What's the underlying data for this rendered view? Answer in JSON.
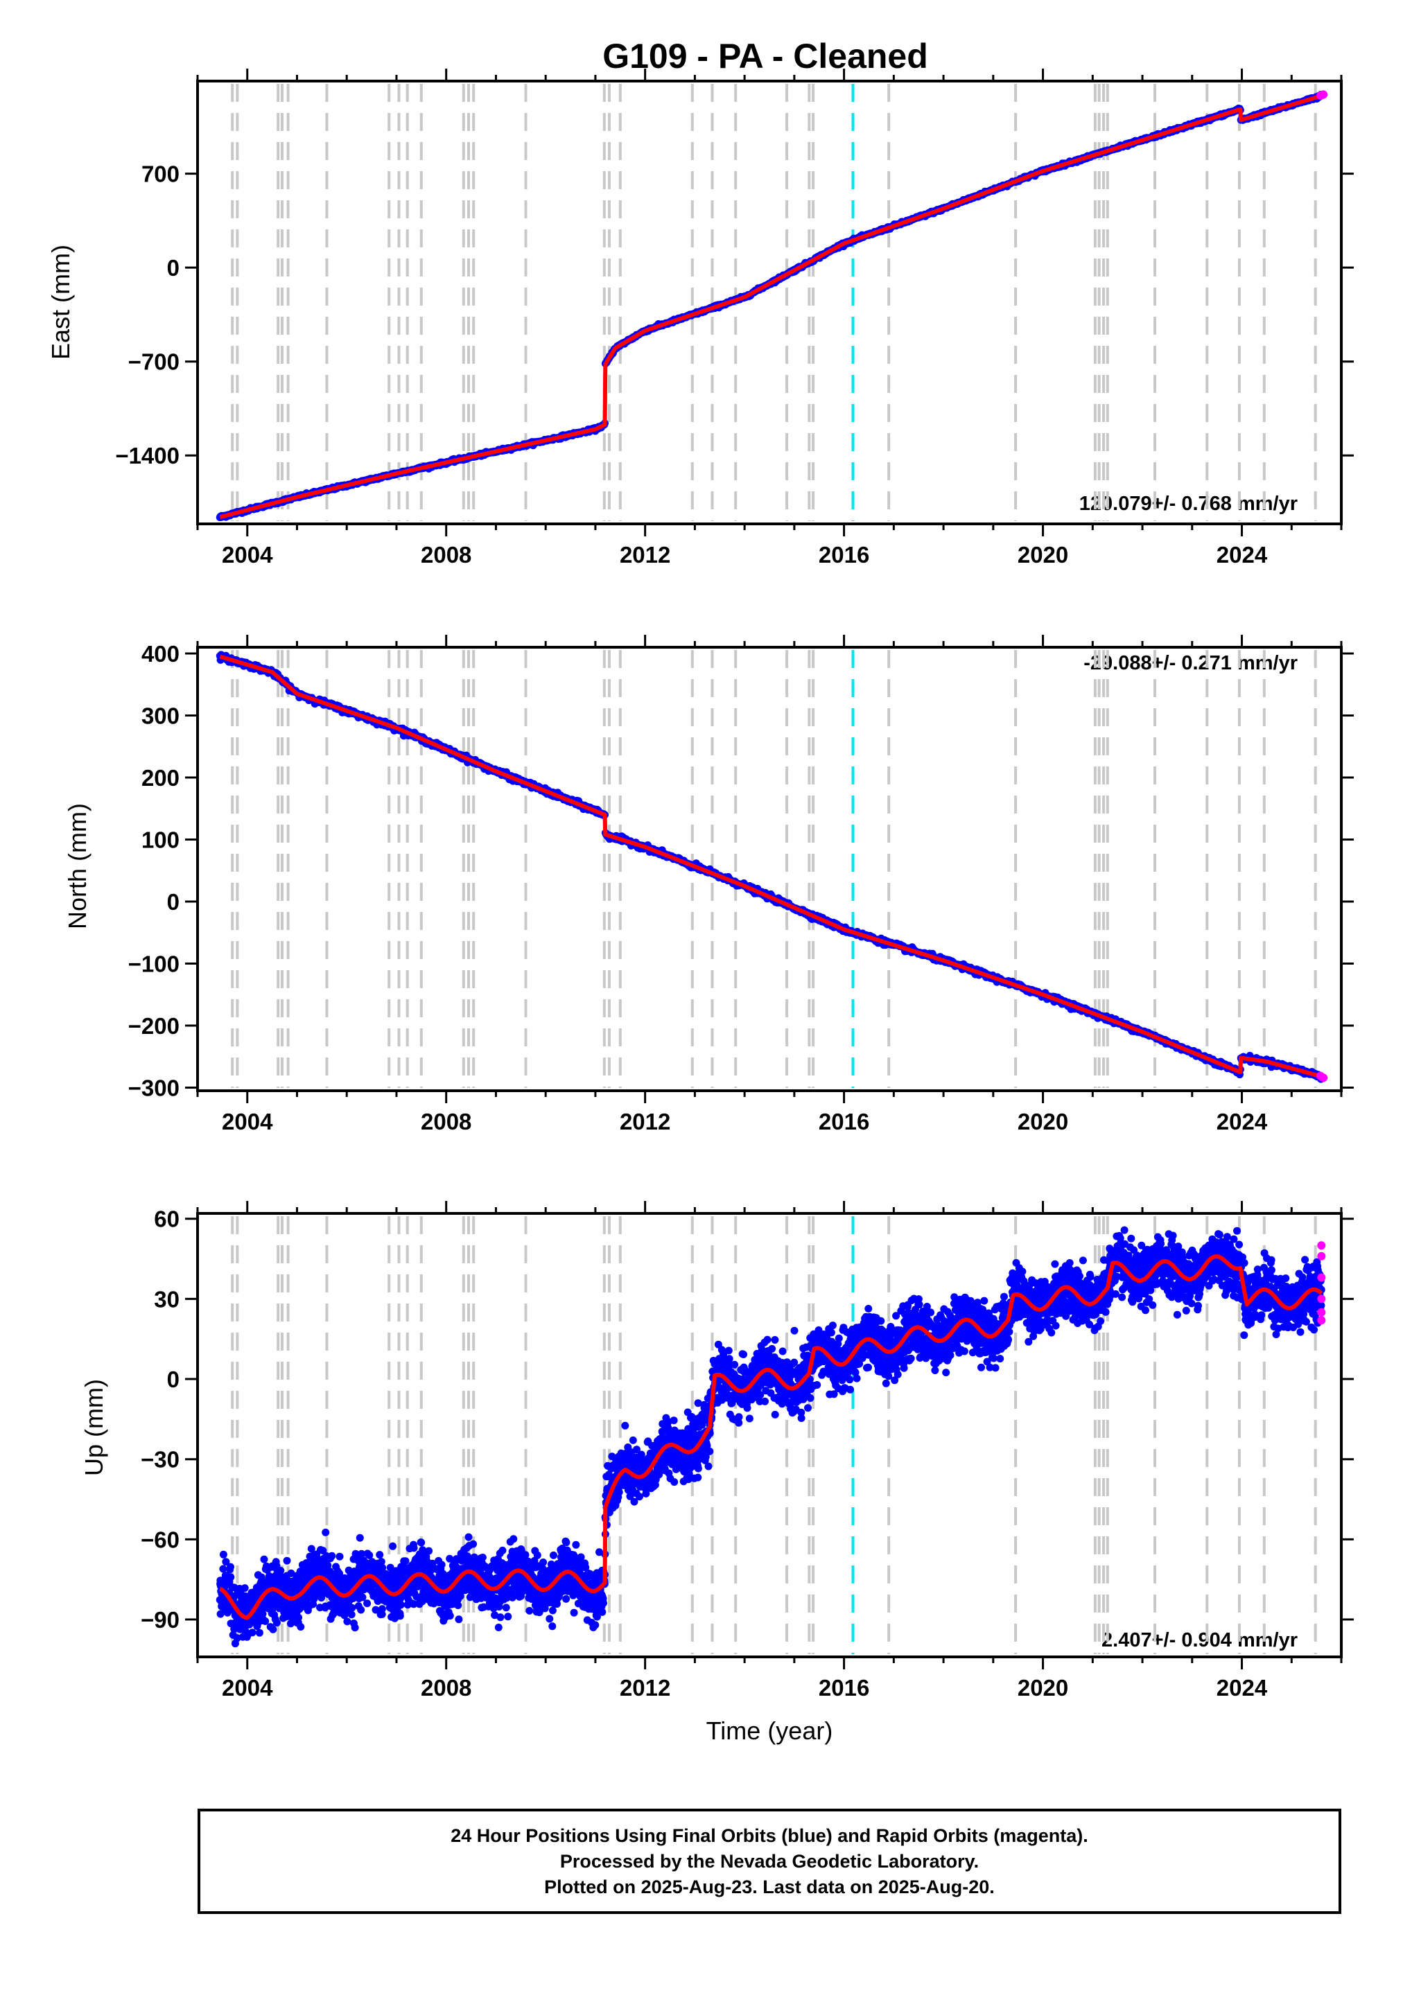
{
  "title": "G109  - PA - Cleaned",
  "xlabel": "Time (year)",
  "caption": [
    "24 Hour Positions Using Final Orbits (blue) and Rapid Orbits (magenta).",
    "Processed by the Nevada Geodetic Laboratory.",
    "Plotted on 2025-Aug-23. Last data on 2025-Aug-20."
  ],
  "colors": {
    "final_orbits": "#0000ff",
    "rapid_orbits": "#ff00ff",
    "model_fit": "#ff0000",
    "equipment_change": "#c8c8c8",
    "highlight_event": "#00e5ee"
  },
  "chart_data": [
    {
      "type": "scatter",
      "ylabel": "East (mm)",
      "rate_label": "120.079+/- 0.768 mm/yr",
      "xlim": [
        2003.0,
        2026.0
      ],
      "ylim": [
        -1910,
        1390
      ],
      "xticks": [
        "2004",
        "2008",
        "2012",
        "2016",
        "2020",
        "2024"
      ],
      "yticks": [
        "700",
        "0",
        "−700",
        "−1400"
      ],
      "grid": false,
      "series": [
        {
          "name": "Final Orbits",
          "role": "final",
          "noise": 5,
          "x": [
            2003.45,
            2005.0,
            2007.0,
            2009.0,
            2011.0,
            2011.19,
            2011.2,
            2011.4,
            2012.0,
            2014.0,
            2016.0,
            2018.0,
            2020.0,
            2022.0,
            2023.97,
            2023.98,
            2025.6
          ],
          "y": [
            -1860,
            -1710,
            -1535,
            -1370,
            -1205,
            -1170,
            -720,
            -600,
            -470,
            -220,
            180,
            440,
            720,
            950,
            1180,
            1100,
            1280
          ]
        },
        {
          "name": "Rapid Orbits",
          "role": "rapid",
          "x": [
            2025.58,
            2025.61,
            2025.64
          ],
          "y": [
            1282,
            1286,
            1290
          ]
        },
        {
          "name": "Model",
          "role": "fit",
          "x": [
            2003.45,
            2005.0,
            2007.0,
            2009.0,
            2011.0,
            2011.19,
            2011.2,
            2011.4,
            2012.0,
            2014.0,
            2016.0,
            2018.0,
            2020.0,
            2022.0,
            2023.97,
            2023.98,
            2025.6
          ],
          "y": [
            -1860,
            -1710,
            -1535,
            -1370,
            -1205,
            -1170,
            -720,
            -600,
            -470,
            -220,
            180,
            440,
            720,
            950,
            1180,
            1100,
            1280
          ]
        }
      ]
    },
    {
      "type": "scatter",
      "ylabel": "North (mm)",
      "rate_label": "-29.088+/- 0.271 mm/yr",
      "xlim": [
        2003.0,
        2026.0
      ],
      "ylim": [
        -305,
        410
      ],
      "xticks": [
        "2004",
        "2008",
        "2012",
        "2016",
        "2020",
        "2024"
      ],
      "yticks": [
        "400",
        "300",
        "200",
        "100",
        "0",
        "−100",
        "−200",
        "−300"
      ],
      "grid": false,
      "series": [
        {
          "name": "Final Orbits",
          "role": "final",
          "noise": 2,
          "x": [
            2003.45,
            2004.5,
            2005.0,
            2007.0,
            2009.0,
            2011.19,
            2011.2,
            2012.0,
            2014.0,
            2016.0,
            2018.0,
            2020.0,
            2022.0,
            2023.97,
            2023.98,
            2024.5,
            2025.6
          ],
          "y": [
            395,
            370,
            335,
            280,
            210,
            140,
            108,
            88,
            25,
            -45,
            -95,
            -150,
            -210,
            -275,
            -252,
            -258,
            -282
          ]
        },
        {
          "name": "Rapid Orbits",
          "role": "rapid",
          "x": [
            2025.58,
            2025.61,
            2025.64
          ],
          "y": [
            -281,
            -283,
            -284
          ]
        },
        {
          "name": "Model",
          "role": "fit",
          "x": [
            2003.45,
            2004.5,
            2005.0,
            2007.0,
            2009.0,
            2011.19,
            2011.2,
            2012.0,
            2014.0,
            2016.0,
            2018.0,
            2020.0,
            2022.0,
            2023.97,
            2023.98,
            2024.5,
            2025.6
          ],
          "y": [
            395,
            370,
            335,
            280,
            210,
            140,
            108,
            88,
            25,
            -45,
            -95,
            -150,
            -210,
            -275,
            -252,
            -258,
            -282
          ]
        }
      ]
    },
    {
      "type": "scatter",
      "ylabel": "Up (mm)",
      "rate_label": "2.407+/- 0.904 mm/yr",
      "xlim": [
        2003.0,
        2026.0
      ],
      "ylim": [
        -104,
        62
      ],
      "xticks": [
        "2004",
        "2008",
        "2012",
        "2016",
        "2020",
        "2024"
      ],
      "yticks": [
        "60",
        "30",
        "0",
        "−30",
        "−60",
        "−90"
      ],
      "grid": false,
      "series": [
        {
          "name": "Final Orbits",
          "role": "final",
          "noise": 5,
          "x": [
            2003.45,
            2004.0,
            2005.0,
            2007.0,
            2009.0,
            2011.19,
            2011.2,
            2011.6,
            2012.5,
            2013.3,
            2013.4,
            2014.5,
            2015.3,
            2015.4,
            2016.0,
            2017.0,
            2018.0,
            2019.3,
            2019.4,
            2020.5,
            2021.3,
            2021.4,
            2023.2,
            2023.97,
            2024.1,
            2025.6
          ],
          "y": [
            -82,
            -86,
            -78,
            -77,
            -75,
            -76,
            -48,
            -36,
            -28,
            -20,
            -2,
            0,
            0,
            8,
            9,
            14,
            18,
            20,
            28,
            31,
            32,
            40,
            41,
            45,
            30,
            30
          ]
        },
        {
          "name": "Rapid Orbits",
          "role": "rapid",
          "x": [
            2025.6,
            2025.6,
            2025.6,
            2025.6,
            2025.6,
            2025.6
          ],
          "y": [
            50,
            46,
            38,
            30,
            25,
            22
          ]
        },
        {
          "name": "Model",
          "role": "fit",
          "seasonal": 3.5,
          "x": [
            2003.45,
            2004.0,
            2005.0,
            2007.0,
            2009.0,
            2011.19,
            2011.2,
            2011.6,
            2012.5,
            2013.3,
            2013.4,
            2014.5,
            2015.3,
            2015.4,
            2016.0,
            2017.0,
            2018.0,
            2019.3,
            2019.4,
            2020.5,
            2021.3,
            2021.4,
            2023.2,
            2023.97,
            2024.1,
            2025.6
          ],
          "y": [
            -82,
            -86,
            -78,
            -77,
            -75,
            -76,
            -48,
            -36,
            -28,
            -20,
            -2,
            0,
            0,
            8,
            9,
            14,
            18,
            20,
            28,
            31,
            32,
            40,
            41,
            45,
            30,
            30
          ]
        }
      ]
    }
  ],
  "event_lines": {
    "equipment_change": [
      2003.7,
      2003.8,
      2004.62,
      2004.7,
      2004.82,
      2005.6,
      2006.85,
      2007.05,
      2007.22,
      2007.5,
      2008.35,
      2008.45,
      2008.55,
      2009.6,
      2011.18,
      2011.28,
      2011.5,
      2012.95,
      2013.35,
      2013.82,
      2014.85,
      2015.3,
      2015.38,
      2016.9,
      2019.45,
      2021.05,
      2021.13,
      2021.22,
      2021.3,
      2022.25,
      2023.3,
      2023.95,
      2024.45,
      2025.48
    ],
    "highlight_event": [
      2016.18
    ]
  }
}
